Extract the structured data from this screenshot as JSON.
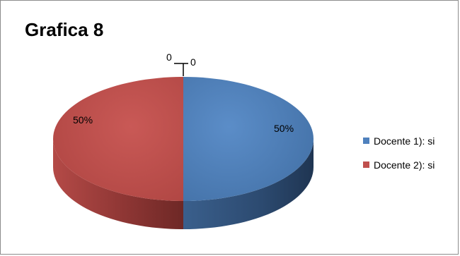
{
  "chart_data": {
    "type": "pie",
    "title": "Grafica 8",
    "categories": [
      "Docente 1): si",
      "Docente 2): si"
    ],
    "values": [
      50,
      50
    ],
    "colors": [
      "#4f81bd",
      "#c0504d"
    ],
    "data_labels": [
      "50%",
      "50%"
    ],
    "zero_labels": [
      "0",
      "0"
    ],
    "three_d": true,
    "legend": "right"
  }
}
